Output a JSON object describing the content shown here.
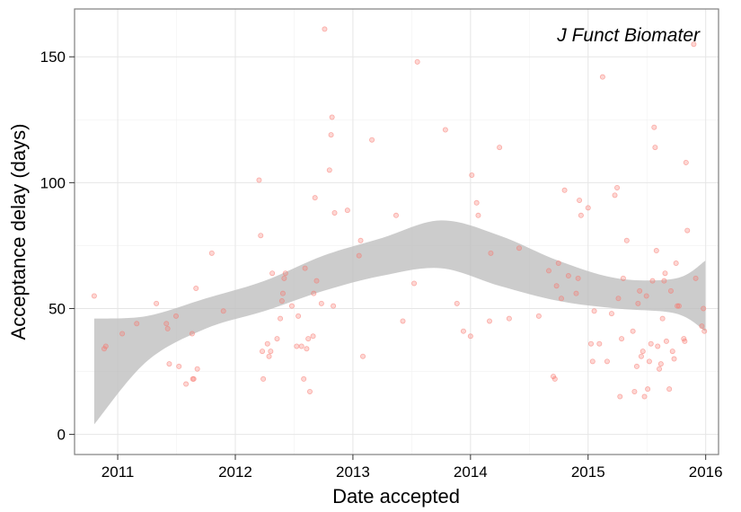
{
  "chart_data": {
    "type": "scatter",
    "annotation": "J Funct Biomater",
    "xlabel": "Date accepted",
    "ylabel": "Acceptance delay (days)",
    "x_ticks": [
      "2011",
      "2012",
      "2013",
      "2014",
      "2015",
      "2016"
    ],
    "y_ticks": [
      0,
      50,
      100,
      150
    ],
    "xlim": [
      "2010-08-20",
      "2016-02-10"
    ],
    "ylim": [
      -8,
      169
    ],
    "grid": true,
    "point_color": "#F8766D",
    "ribbon_color": "#BEBEBE",
    "points": [
      [
        "2010-10-20",
        55
      ],
      [
        "2010-11-20",
        34
      ],
      [
        "2010-11-25",
        35
      ],
      [
        "2011-01-15",
        40
      ],
      [
        "2011-03-01",
        44
      ],
      [
        "2011-05-01",
        52
      ],
      [
        "2011-06-01",
        44
      ],
      [
        "2011-06-05",
        42
      ],
      [
        "2011-06-10",
        28
      ],
      [
        "2011-07-01",
        47
      ],
      [
        "2011-07-10",
        27
      ],
      [
        "2011-08-01",
        20
      ],
      [
        "2011-08-20",
        40
      ],
      [
        "2011-08-22",
        22
      ],
      [
        "2011-08-25",
        22
      ],
      [
        "2011-09-01",
        58
      ],
      [
        "2011-09-05",
        26
      ],
      [
        "2011-10-20",
        72
      ],
      [
        "2011-11-25",
        49
      ],
      [
        "2012-03-15",
        101
      ],
      [
        "2012-03-20",
        79
      ],
      [
        "2012-03-25",
        33
      ],
      [
        "2012-03-28",
        22
      ],
      [
        "2012-04-10",
        36
      ],
      [
        "2012-04-15",
        31
      ],
      [
        "2012-04-20",
        33
      ],
      [
        "2012-04-25",
        64
      ],
      [
        "2012-05-10",
        38
      ],
      [
        "2012-05-20",
        46
      ],
      [
        "2012-05-25",
        53
      ],
      [
        "2012-05-28",
        56
      ],
      [
        "2012-06-01",
        62
      ],
      [
        "2012-06-05",
        64
      ],
      [
        "2012-06-25",
        51
      ],
      [
        "2012-07-10",
        35
      ],
      [
        "2012-07-15",
        47
      ],
      [
        "2012-07-25",
        35
      ],
      [
        "2012-08-01",
        22
      ],
      [
        "2012-08-05",
        66
      ],
      [
        "2012-08-10",
        34
      ],
      [
        "2012-08-15",
        38
      ],
      [
        "2012-08-20",
        17
      ],
      [
        "2012-08-30",
        39
      ],
      [
        "2012-09-01",
        56
      ],
      [
        "2012-09-05",
        94
      ],
      [
        "2012-09-10",
        61
      ],
      [
        "2012-09-25",
        52
      ],
      [
        "2012-10-05",
        161
      ],
      [
        "2012-10-20",
        105
      ],
      [
        "2012-10-25",
        119
      ],
      [
        "2012-10-28",
        126
      ],
      [
        "2012-11-01",
        51
      ],
      [
        "2012-11-05",
        88
      ],
      [
        "2012-12-15",
        89
      ],
      [
        "2013-01-20",
        71
      ],
      [
        "2013-01-25",
        77
      ],
      [
        "2013-02-01",
        31
      ],
      [
        "2013-03-01",
        117
      ],
      [
        "2013-05-15",
        87
      ],
      [
        "2013-06-05",
        45
      ],
      [
        "2013-07-10",
        60
      ],
      [
        "2013-07-20",
        148
      ],
      [
        "2013-10-15",
        121
      ],
      [
        "2013-11-20",
        52
      ],
      [
        "2013-12-10",
        41
      ],
      [
        "2014-01-01",
        39
      ],
      [
        "2014-01-05",
        103
      ],
      [
        "2014-01-20",
        92
      ],
      [
        "2014-01-25",
        87
      ],
      [
        "2014-03-01",
        45
      ],
      [
        "2014-03-05",
        72
      ],
      [
        "2014-04-01",
        114
      ],
      [
        "2014-05-01",
        46
      ],
      [
        "2014-06-01",
        74
      ],
      [
        "2014-08-01",
        47
      ],
      [
        "2014-09-01",
        65
      ],
      [
        "2014-09-15",
        23
      ],
      [
        "2014-09-20",
        22
      ],
      [
        "2014-09-25",
        59
      ],
      [
        "2014-10-01",
        68
      ],
      [
        "2014-10-10",
        54
      ],
      [
        "2014-10-20",
        97
      ],
      [
        "2014-11-01",
        63
      ],
      [
        "2014-11-25",
        56
      ],
      [
        "2014-12-01",
        62
      ],
      [
        "2014-12-05",
        93
      ],
      [
        "2014-12-10",
        87
      ],
      [
        "2015-01-01",
        90
      ],
      [
        "2015-01-10",
        36
      ],
      [
        "2015-01-15",
        29
      ],
      [
        "2015-01-20",
        49
      ],
      [
        "2015-02-05",
        36
      ],
      [
        "2015-02-15",
        142
      ],
      [
        "2015-03-01",
        29
      ],
      [
        "2015-03-15",
        48
      ],
      [
        "2015-03-25",
        95
      ],
      [
        "2015-04-01",
        98
      ],
      [
        "2015-04-05",
        54
      ],
      [
        "2015-04-10",
        15
      ],
      [
        "2015-04-15",
        38
      ],
      [
        "2015-04-20",
        62
      ],
      [
        "2015-05-01",
        77
      ],
      [
        "2015-05-20",
        41
      ],
      [
        "2015-05-25",
        17
      ],
      [
        "2015-06-01",
        27
      ],
      [
        "2015-06-05",
        52
      ],
      [
        "2015-06-10",
        57
      ],
      [
        "2015-06-15",
        31
      ],
      [
        "2015-06-20",
        33
      ],
      [
        "2015-06-25",
        15
      ],
      [
        "2015-07-01",
        55
      ],
      [
        "2015-07-05",
        18
      ],
      [
        "2015-07-10",
        29
      ],
      [
        "2015-07-15",
        36
      ],
      [
        "2015-07-20",
        61
      ],
      [
        "2015-07-25",
        122
      ],
      [
        "2015-07-28",
        114
      ],
      [
        "2015-08-01",
        73
      ],
      [
        "2015-08-05",
        35
      ],
      [
        "2015-08-10",
        26
      ],
      [
        "2015-08-15",
        28
      ],
      [
        "2015-08-20",
        46
      ],
      [
        "2015-08-25",
        61
      ],
      [
        "2015-08-28",
        64
      ],
      [
        "2015-09-01",
        37
      ],
      [
        "2015-09-10",
        18
      ],
      [
        "2015-09-15",
        57
      ],
      [
        "2015-09-20",
        33
      ],
      [
        "2015-09-25",
        30
      ],
      [
        "2015-10-01",
        68
      ],
      [
        "2015-10-05",
        51
      ],
      [
        "2015-10-10",
        51
      ],
      [
        "2015-10-25",
        38
      ],
      [
        "2015-10-28",
        37
      ],
      [
        "2015-11-01",
        108
      ],
      [
        "2015-11-05",
        81
      ],
      [
        "2015-11-25",
        155
      ],
      [
        "2015-12-01",
        62
      ],
      [
        "2015-12-20",
        43
      ],
      [
        "2015-12-25",
        50
      ],
      [
        "2015-12-28",
        41
      ]
    ],
    "confidence_band": {
      "x": [
        "2010-10-20",
        "2011-04-01",
        "2011-10-01",
        "2012-04-01",
        "2012-10-01",
        "2013-04-01",
        "2013-10-01",
        "2014-04-01",
        "2014-10-01",
        "2015-04-01",
        "2015-10-01",
        "2015-12-31"
      ],
      "lower": [
        4,
        29,
        42,
        49,
        57,
        63,
        66,
        59,
        53,
        50,
        48,
        41
      ],
      "upper": [
        46,
        47,
        54,
        61,
        71,
        78,
        85,
        79,
        69,
        62,
        62,
        69
      ]
    }
  }
}
